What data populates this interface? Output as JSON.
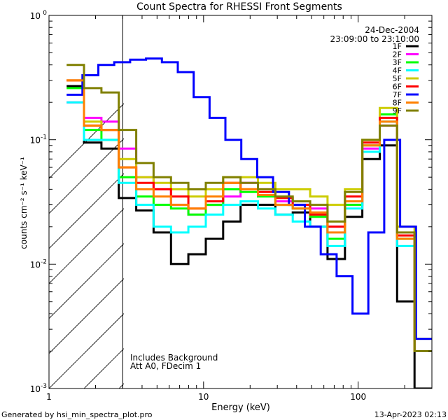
{
  "chart_data": {
    "type": "line",
    "title": "Count Spectra for RHESSI Front Segments",
    "xlabel": "Energy (keV)",
    "ylabel": "counts cm⁻² s⁻¹ keV⁻¹",
    "xscale": "log",
    "yscale": "log",
    "xlim": [
      1,
      300
    ],
    "ylim": [
      0.001,
      1
    ],
    "x_ticks": [
      {
        "v": 1,
        "label": "1"
      },
      {
        "v": 10,
        "label": "10"
      },
      {
        "v": 100,
        "label": "100"
      }
    ],
    "y_ticks": [
      {
        "v": 0.001,
        "mant": "10",
        "exp": "-3"
      },
      {
        "v": 0.01,
        "mant": "10",
        "exp": "-2"
      },
      {
        "v": 0.1,
        "mant": "10",
        "exp": "-1"
      },
      {
        "v": 1,
        "mant": "10",
        "exp": "0"
      }
    ],
    "date": "24-Dec-2004",
    "time_range": "23:09:00 to 23:10:00",
    "notes": [
      "Includes Background",
      "Att A0, FDecim 1"
    ],
    "attenuator_shading_max_kev": 3,
    "series": [
      {
        "name": "1F",
        "color": "#000000",
        "values": [
          0.27,
          0.095,
          0.085,
          0.034,
          0.027,
          0.018,
          0.01,
          0.012,
          0.016,
          0.022,
          0.03,
          0.03,
          0.025,
          0.026,
          0.02,
          0.011,
          0.024,
          0.07,
          0.09,
          0.005,
          0.001
        ]
      },
      {
        "name": "2F",
        "color": "#ff00ff",
        "values": [
          0.2,
          0.15,
          0.14,
          0.085,
          0.05,
          0.04,
          0.03,
          0.025,
          0.03,
          0.035,
          0.045,
          0.04,
          0.032,
          0.03,
          0.028,
          0.02,
          0.03,
          0.085,
          0.13,
          0.018,
          0.002
        ]
      },
      {
        "name": "3F",
        "color": "#00ff00",
        "values": [
          0.26,
          0.12,
          0.1,
          0.05,
          0.035,
          0.03,
          0.028,
          0.025,
          0.03,
          0.04,
          0.038,
          0.035,
          0.03,
          0.028,
          0.024,
          0.016,
          0.03,
          0.09,
          0.16,
          0.016,
          0.002
        ]
      },
      {
        "name": "4F",
        "color": "#00ffff",
        "values": [
          0.2,
          0.1,
          0.1,
          0.045,
          0.03,
          0.02,
          0.018,
          0.02,
          0.025,
          0.03,
          0.032,
          0.028,
          0.025,
          0.022,
          0.02,
          0.014,
          0.028,
          0.08,
          0.14,
          0.014,
          0.002
        ]
      },
      {
        "name": "5F",
        "color": "#cccc00",
        "values": [
          0.3,
          0.14,
          0.12,
          0.07,
          0.05,
          0.045,
          0.04,
          0.035,
          0.04,
          0.05,
          0.05,
          0.045,
          0.04,
          0.04,
          0.035,
          0.03,
          0.04,
          0.1,
          0.18,
          0.02,
          0.0025
        ]
      },
      {
        "name": "6F",
        "color": "#ff0000",
        "values": [
          0.3,
          0.13,
          0.12,
          0.06,
          0.045,
          0.04,
          0.035,
          0.028,
          0.032,
          0.045,
          0.04,
          0.038,
          0.034,
          0.03,
          0.025,
          0.02,
          0.035,
          0.095,
          0.15,
          0.017,
          0.002
        ]
      },
      {
        "name": "7F",
        "color": "#0000ff",
        "values": [
          0.23,
          0.33,
          0.4,
          0.42,
          0.44,
          0.45,
          0.42,
          0.35,
          0.22,
          0.15,
          0.1,
          0.07,
          0.05,
          0.038,
          0.03,
          0.02,
          0.012,
          0.008,
          0.004,
          0.018,
          0.1,
          0.02,
          0.0025
        ]
      },
      {
        "name": "8F",
        "color": "#ff8000",
        "values": [
          0.3,
          0.13,
          0.12,
          0.06,
          0.04,
          0.035,
          0.03,
          0.028,
          0.035,
          0.045,
          0.04,
          0.036,
          0.03,
          0.028,
          0.026,
          0.018,
          0.032,
          0.09,
          0.14,
          0.016,
          0.002
        ]
      },
      {
        "name": "9F",
        "color": "#808000",
        "values": [
          0.4,
          0.26,
          0.24,
          0.12,
          0.065,
          0.05,
          0.045,
          0.04,
          0.045,
          0.05,
          0.045,
          0.04,
          0.035,
          0.032,
          0.03,
          0.022,
          0.038,
          0.1,
          0.13,
          0.018,
          0.002
        ]
      }
    ]
  },
  "footer": {
    "left": "Generated by hsi_min_spectra_plot.pro",
    "right": "13-Apr-2023 02:13"
  }
}
